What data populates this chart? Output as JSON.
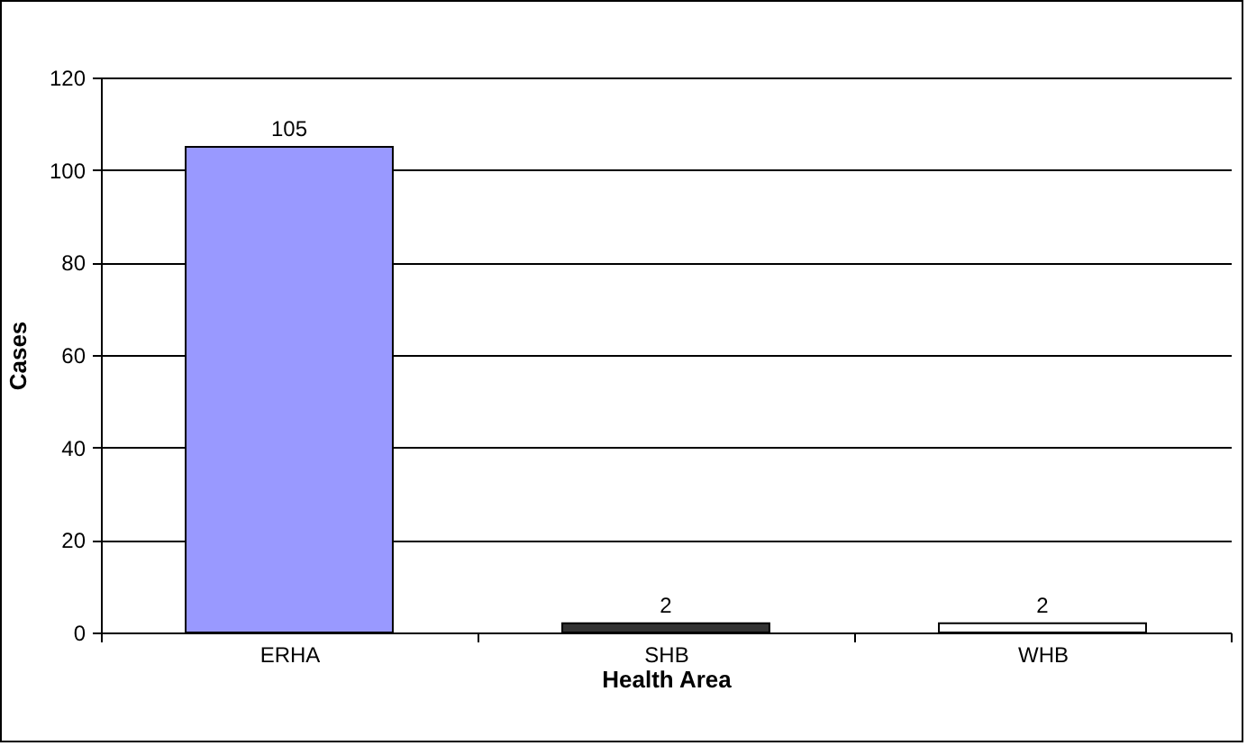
{
  "chart_data": {
    "type": "bar",
    "xlabel": "Health Area",
    "ylabel": "Cases",
    "categories": [
      "ERHA",
      "SHB",
      "WHB"
    ],
    "values": [
      105,
      2,
      2
    ],
    "colors": [
      "#9999ff",
      "#333333",
      "#ffffff"
    ],
    "ylim": [
      0,
      120
    ],
    "yticks": [
      0,
      20,
      40,
      60,
      80,
      100,
      120
    ],
    "grid": "y",
    "data_labels": true,
    "legend": false
  }
}
